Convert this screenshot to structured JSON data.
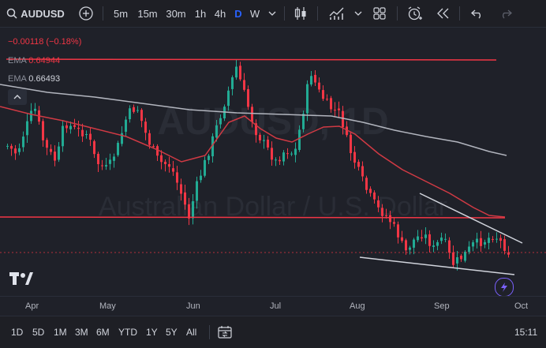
{
  "toolbar": {
    "symbol": "AUDUSD",
    "intervals": [
      "5m",
      "15m",
      "30m",
      "1h",
      "4h",
      "D",
      "W"
    ],
    "active_interval": "D"
  },
  "legend": {
    "change_text": "−0.00118 (−0.18%)",
    "ema1_label": "EMA",
    "ema1_value": "0.64944",
    "ema2_label": "EMA",
    "ema2_value": "0.66493"
  },
  "watermark": {
    "symbol": "AUDUSD, 1D",
    "name": "Australian Dollar / U.S. Dollar"
  },
  "x_axis": {
    "months": [
      "Apr",
      "May",
      "Jun",
      "Jul",
      "Aug",
      "Sep",
      "Oct"
    ]
  },
  "bottom": {
    "ranges": [
      "1D",
      "5D",
      "1M",
      "3M",
      "6M",
      "YTD",
      "1Y",
      "5Y",
      "All"
    ],
    "time": "15:11"
  },
  "colors": {
    "up": "#22ab94",
    "down": "#f23645",
    "ema_fast": "#d03a44",
    "ema_slow": "#b2b5be",
    "background": "#1f2129"
  }
}
